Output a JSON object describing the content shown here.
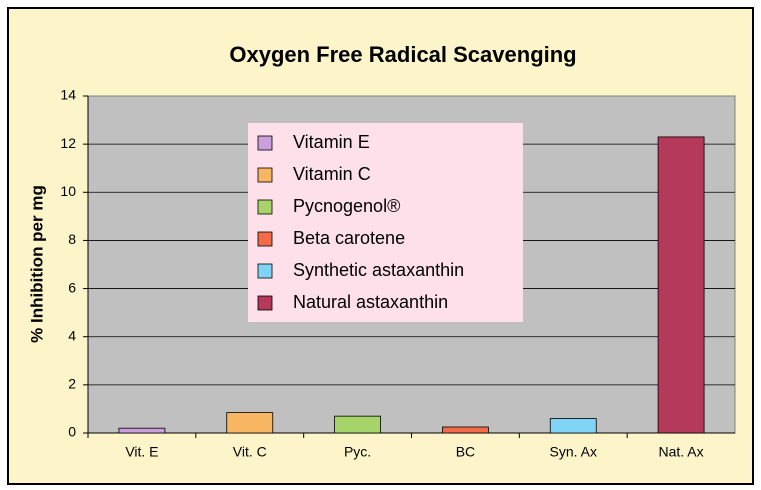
{
  "chart_data": {
    "type": "bar",
    "title": "Oxygen Free Radical Scavenging",
    "y_label": "% Inhibition per mg",
    "categories": [
      "Vit. E",
      "Vit. C",
      "Pyc.",
      "BC",
      "Syn. Ax",
      "Nat. Ax"
    ],
    "values": [
      0.2,
      0.85,
      0.7,
      0.25,
      0.6,
      12.3
    ],
    "colors": [
      "#c9a0dc",
      "#f8b562",
      "#a6d46a",
      "#f46b4a",
      "#7fd4f5",
      "#b5395a"
    ],
    "legend": [
      "Vitamin E",
      "Vitamin C",
      "Pycnogenol®",
      "Beta carotene",
      "Synthetic astaxanthin",
      "Natural astaxanthin"
    ],
    "ylim": [
      0,
      14
    ],
    "yticks": [
      0,
      2,
      4,
      6,
      8,
      10,
      12,
      14
    ],
    "grid": true
  }
}
